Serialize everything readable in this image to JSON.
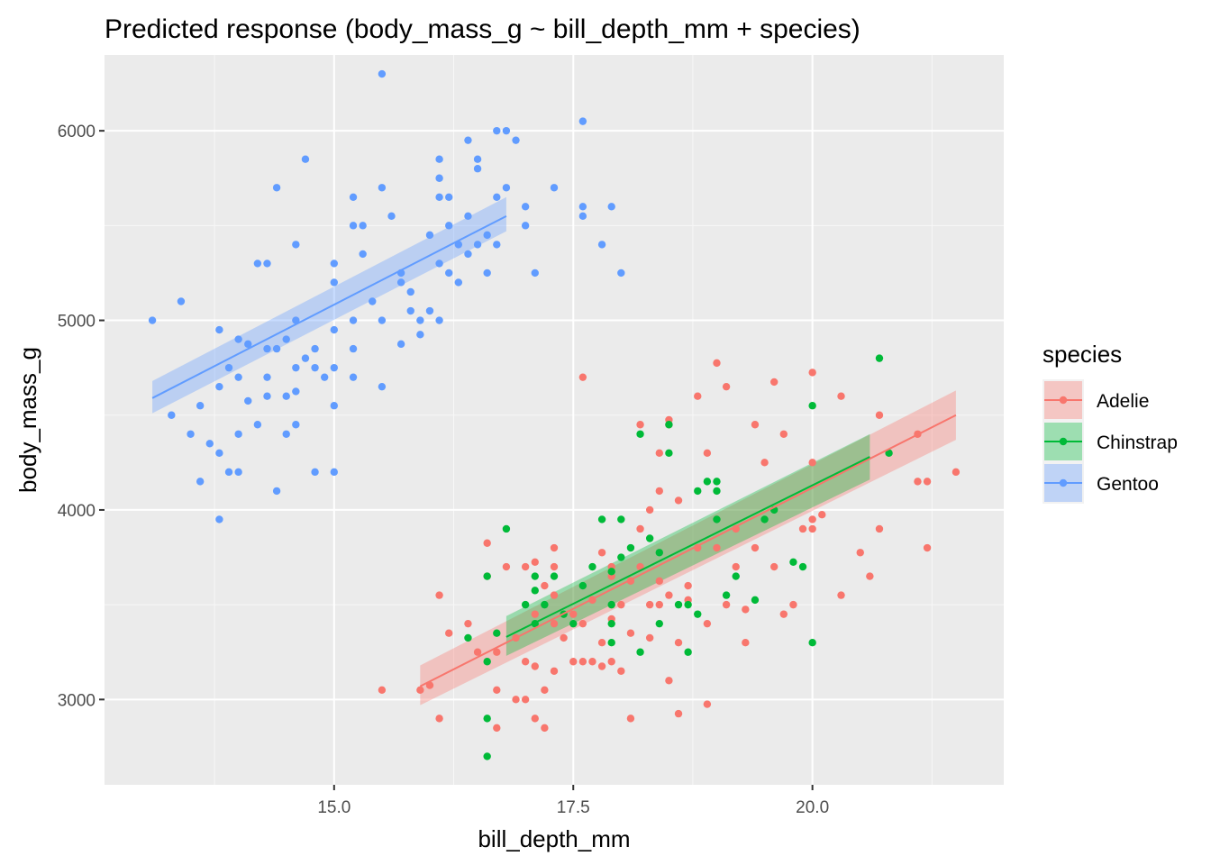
{
  "chart_data": {
    "type": "scatter",
    "title": "Predicted response (body_mass_g ~ bill_depth_mm + species)",
    "xlabel": "bill_depth_mm",
    "ylabel": "body_mass_g",
    "xlim": [
      12.6,
      22.0
    ],
    "ylim": [
      2550,
      6400
    ],
    "x_ticks": [
      15.0,
      17.5,
      20.0
    ],
    "x_tick_labels": [
      "15.0",
      "17.5",
      "20.0"
    ],
    "y_ticks": [
      3000,
      4000,
      5000,
      6000
    ],
    "y_tick_labels": [
      "3000",
      "4000",
      "5000",
      "6000"
    ],
    "grid": true,
    "legend": {
      "title": "species",
      "position": "right"
    },
    "series": [
      {
        "name": "Adelie",
        "color": "#F8766D",
        "fit": {
          "x": [
            15.9,
            21.5
          ],
          "y": [
            3070,
            4500
          ],
          "lower": [
            2970,
            4370
          ],
          "upper": [
            3180,
            4630
          ]
        },
        "points": [
          [
            15.5,
            3050
          ],
          [
            15.9,
            3050
          ],
          [
            16.0,
            3075
          ],
          [
            16.1,
            2900
          ],
          [
            16.1,
            3550
          ],
          [
            16.2,
            3350
          ],
          [
            16.4,
            3400
          ],
          [
            16.5,
            3250
          ],
          [
            16.6,
            3825
          ],
          [
            16.6,
            3650
          ],
          [
            16.7,
            3250
          ],
          [
            16.7,
            3050
          ],
          [
            16.7,
            2850
          ],
          [
            16.8,
            3700
          ],
          [
            16.9,
            3000
          ],
          [
            16.9,
            3325
          ],
          [
            17.0,
            3000
          ],
          [
            17.0,
            3200
          ],
          [
            17.1,
            3725
          ],
          [
            17.1,
            3450
          ],
          [
            17.1,
            3175
          ],
          [
            17.1,
            2900
          ],
          [
            17.2,
            2850
          ],
          [
            17.2,
            3600
          ],
          [
            17.2,
            3050
          ],
          [
            17.3,
            3800
          ],
          [
            17.3,
            3700
          ],
          [
            17.3,
            3550
          ],
          [
            17.3,
            3400
          ],
          [
            17.3,
            3150
          ],
          [
            17.4,
            3325
          ],
          [
            17.5,
            3200
          ],
          [
            17.5,
            3450
          ],
          [
            17.6,
            3400
          ],
          [
            17.6,
            3200
          ],
          [
            17.7,
            3200
          ],
          [
            17.7,
            3525
          ],
          [
            17.8,
            3300
          ],
          [
            17.8,
            3175
          ],
          [
            17.8,
            3775
          ],
          [
            17.9,
            3700
          ],
          [
            17.9,
            3425
          ],
          [
            17.9,
            3200
          ],
          [
            17.9,
            3650
          ],
          [
            18.0,
            3150
          ],
          [
            18.0,
            3500
          ],
          [
            18.1,
            3625
          ],
          [
            18.1,
            3350
          ],
          [
            18.1,
            2900
          ],
          [
            18.2,
            3700
          ],
          [
            18.2,
            4450
          ],
          [
            18.2,
            3900
          ],
          [
            18.3,
            3325
          ],
          [
            18.3,
            3500
          ],
          [
            18.4,
            4300
          ],
          [
            18.4,
            4100
          ],
          [
            18.4,
            3625
          ],
          [
            18.4,
            3500
          ],
          [
            18.5,
            4475
          ],
          [
            18.5,
            4450
          ],
          [
            18.5,
            3550
          ],
          [
            18.5,
            3100
          ],
          [
            18.6,
            4050
          ],
          [
            18.6,
            3300
          ],
          [
            18.6,
            2925
          ],
          [
            18.7,
            3600
          ],
          [
            18.7,
            3525
          ],
          [
            18.8,
            3800
          ],
          [
            18.8,
            4600
          ],
          [
            18.9,
            4300
          ],
          [
            18.9,
            3400
          ],
          [
            18.9,
            2975
          ],
          [
            19.0,
            4775
          ],
          [
            19.0,
            3800
          ],
          [
            19.1,
            4650
          ],
          [
            19.1,
            3500
          ],
          [
            19.2,
            3900
          ],
          [
            19.2,
            3700
          ],
          [
            19.3,
            3300
          ],
          [
            19.3,
            3475
          ],
          [
            19.4,
            3800
          ],
          [
            19.4,
            4450
          ],
          [
            19.5,
            4250
          ],
          [
            19.6,
            3700
          ],
          [
            19.6,
            4675
          ],
          [
            19.7,
            3450
          ],
          [
            19.7,
            4400
          ],
          [
            19.8,
            3500
          ],
          [
            19.9,
            3900
          ],
          [
            20.0,
            4725
          ],
          [
            20.0,
            4250
          ],
          [
            20.0,
            3900
          ],
          [
            20.0,
            3950
          ],
          [
            20.1,
            3975
          ],
          [
            20.3,
            4600
          ],
          [
            20.3,
            3550
          ],
          [
            20.5,
            3775
          ],
          [
            20.6,
            3650
          ],
          [
            20.7,
            4500
          ],
          [
            20.7,
            3900
          ],
          [
            21.1,
            4400
          ],
          [
            21.1,
            4150
          ],
          [
            21.2,
            4150
          ],
          [
            21.2,
            3800
          ],
          [
            21.5,
            4200
          ],
          [
            17.6,
            4700
          ],
          [
            18.3,
            4000
          ],
          [
            17.0,
            3700
          ]
        ]
      },
      {
        "name": "Chinstrap",
        "color": "#00BA38",
        "fit": {
          "x": [
            16.8,
            20.6
          ],
          "y": [
            3330,
            4280
          ],
          "lower": [
            3230,
            4160
          ],
          "upper": [
            3440,
            4400
          ]
        },
        "points": [
          [
            16.4,
            3325
          ],
          [
            16.6,
            3200
          ],
          [
            16.6,
            2900
          ],
          [
            16.6,
            2700
          ],
          [
            16.6,
            3650
          ],
          [
            16.7,
            3350
          ],
          [
            16.8,
            3900
          ],
          [
            17.0,
            3500
          ],
          [
            17.1,
            3650
          ],
          [
            17.1,
            3575
          ],
          [
            17.1,
            3400
          ],
          [
            17.2,
            3500
          ],
          [
            17.3,
            3650
          ],
          [
            17.4,
            3450
          ],
          [
            17.5,
            3400
          ],
          [
            17.6,
            3600
          ],
          [
            17.7,
            3700
          ],
          [
            17.8,
            3950
          ],
          [
            17.9,
            3675
          ],
          [
            17.9,
            3400
          ],
          [
            17.9,
            3300
          ],
          [
            17.9,
            3500
          ],
          [
            18.0,
            3950
          ],
          [
            18.0,
            3750
          ],
          [
            18.1,
            3800
          ],
          [
            18.2,
            4400
          ],
          [
            18.2,
            3250
          ],
          [
            18.3,
            3850
          ],
          [
            18.4,
            3775
          ],
          [
            18.4,
            3400
          ],
          [
            18.5,
            4450
          ],
          [
            18.5,
            4300
          ],
          [
            18.6,
            3500
          ],
          [
            18.7,
            3500
          ],
          [
            18.7,
            3250
          ],
          [
            18.8,
            4100
          ],
          [
            18.8,
            3450
          ],
          [
            18.9,
            4150
          ],
          [
            19.0,
            4150
          ],
          [
            19.0,
            4100
          ],
          [
            19.0,
            3950
          ],
          [
            19.1,
            3550
          ],
          [
            19.2,
            3650
          ],
          [
            19.4,
            3525
          ],
          [
            19.5,
            3950
          ],
          [
            19.6,
            4000
          ],
          [
            19.8,
            3725
          ],
          [
            19.9,
            3700
          ],
          [
            20.0,
            4550
          ],
          [
            20.0,
            3300
          ],
          [
            20.7,
            4800
          ],
          [
            20.8,
            4300
          ]
        ]
      },
      {
        "name": "Gentoo",
        "color": "#619CFF",
        "fit": {
          "x": [
            13.1,
            16.8
          ],
          "y": [
            4590,
            5550
          ],
          "lower": [
            4510,
            5470
          ],
          "upper": [
            4680,
            5650
          ]
        },
        "points": [
          [
            13.1,
            5000
          ],
          [
            13.3,
            4500
          ],
          [
            13.4,
            5100
          ],
          [
            13.5,
            4400
          ],
          [
            13.6,
            4150
          ],
          [
            13.6,
            4550
          ],
          [
            13.7,
            4350
          ],
          [
            13.8,
            4950
          ],
          [
            13.8,
            4650
          ],
          [
            13.8,
            4300
          ],
          [
            13.8,
            3950
          ],
          [
            13.9,
            4750
          ],
          [
            13.9,
            4200
          ],
          [
            14.0,
            4900
          ],
          [
            14.0,
            4700
          ],
          [
            14.0,
            4400
          ],
          [
            14.0,
            4200
          ],
          [
            14.1,
            4875
          ],
          [
            14.1,
            4575
          ],
          [
            14.2,
            5300
          ],
          [
            14.2,
            4450
          ],
          [
            14.3,
            5300
          ],
          [
            14.3,
            4850
          ],
          [
            14.3,
            4700
          ],
          [
            14.3,
            4600
          ],
          [
            14.4,
            5700
          ],
          [
            14.4,
            4850
          ],
          [
            14.4,
            4100
          ],
          [
            14.5,
            4900
          ],
          [
            14.5,
            4600
          ],
          [
            14.5,
            4400
          ],
          [
            14.6,
            5400
          ],
          [
            14.6,
            5000
          ],
          [
            14.6,
            4750
          ],
          [
            14.6,
            4625
          ],
          [
            14.6,
            4450
          ],
          [
            14.7,
            4800
          ],
          [
            14.7,
            5850
          ],
          [
            14.8,
            4850
          ],
          [
            14.8,
            4200
          ],
          [
            14.9,
            4700
          ],
          [
            15.0,
            5200
          ],
          [
            15.0,
            5300
          ],
          [
            15.0,
            4950
          ],
          [
            15.0,
            4750
          ],
          [
            15.0,
            4550
          ],
          [
            15.0,
            4200
          ],
          [
            15.2,
            5650
          ],
          [
            15.2,
            5500
          ],
          [
            15.2,
            5000
          ],
          [
            15.2,
            4850
          ],
          [
            15.2,
            4700
          ],
          [
            15.3,
            5500
          ],
          [
            15.3,
            5350
          ],
          [
            15.4,
            5100
          ],
          [
            15.5,
            6300
          ],
          [
            15.5,
            5700
          ],
          [
            15.5,
            5000
          ],
          [
            15.5,
            4650
          ],
          [
            15.6,
            5550
          ],
          [
            15.7,
            5250
          ],
          [
            15.7,
            5200
          ],
          [
            15.8,
            5150
          ],
          [
            15.8,
            5050
          ],
          [
            15.9,
            5000
          ],
          [
            16.0,
            5450
          ],
          [
            16.0,
            5050
          ],
          [
            16.1,
            5850
          ],
          [
            16.1,
            5750
          ],
          [
            16.1,
            5650
          ],
          [
            16.1,
            5300
          ],
          [
            16.1,
            5000
          ],
          [
            16.2,
            5500
          ],
          [
            16.2,
            5250
          ],
          [
            16.3,
            5400
          ],
          [
            16.3,
            5200
          ],
          [
            16.4,
            5950
          ],
          [
            16.4,
            5550
          ],
          [
            16.4,
            5350
          ],
          [
            16.5,
            5850
          ],
          [
            16.5,
            5800
          ],
          [
            16.6,
            5450
          ],
          [
            16.6,
            5250
          ],
          [
            16.7,
            6000
          ],
          [
            16.7,
            5650
          ],
          [
            16.7,
            5400
          ],
          [
            16.8,
            6000
          ],
          [
            16.8,
            5700
          ],
          [
            16.9,
            5950
          ],
          [
            17.0,
            5600
          ],
          [
            17.0,
            5500
          ],
          [
            17.1,
            5250
          ],
          [
            17.3,
            5700
          ],
          [
            17.6,
            6050
          ],
          [
            17.6,
            5600
          ],
          [
            17.6,
            5550
          ],
          [
            17.8,
            5400
          ],
          [
            17.9,
            5600
          ],
          [
            18.0,
            5250
          ],
          [
            15.9,
            4925
          ],
          [
            15.7,
            4875
          ],
          [
            14.8,
            4750
          ],
          [
            16.5,
            5400
          ],
          [
            16.2,
            5650
          ]
        ]
      }
    ]
  }
}
